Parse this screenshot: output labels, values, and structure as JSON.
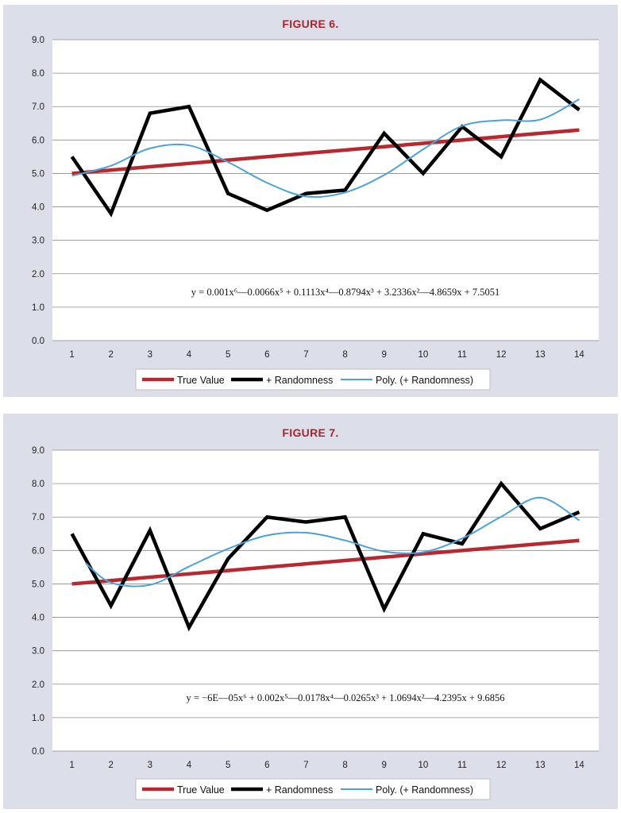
{
  "figures": [
    {
      "title": "FIGURE 6.",
      "equation": "y = 0.001x⁶—0.0066x⁵ + 0.1113x⁴—0.8794x³ + 3.2336x²—4.8659x + 7.5051",
      "legend": [
        "True Value",
        "+ Randomness",
        "Poly. (+ Randomness)"
      ]
    },
    {
      "title": "FIGURE 7.",
      "equation": "y = −6E—05x⁶ + 0.002x⁵—0.0178x⁴—0.0265x³ + 1.0694x²—4.2395x + 9.6856",
      "legend": [
        "True Value",
        "+ Randomness",
        "Poly. (+ Randomness)"
      ]
    }
  ],
  "chart_data": [
    {
      "type": "line",
      "title": "FIGURE 6.",
      "categories": [
        1,
        2,
        3,
        4,
        5,
        6,
        7,
        8,
        9,
        10,
        11,
        12,
        13,
        14
      ],
      "ylim": [
        0,
        9
      ],
      "yticks": [
        "0.0",
        "1.0",
        "2.0",
        "3.0",
        "4.0",
        "5.0",
        "6.0",
        "7.0",
        "8.0",
        "9.0"
      ],
      "grid": true,
      "legend_position": "bottom",
      "series": [
        {
          "name": "True Value",
          "color": "#b8292f",
          "values": [
            5.0,
            5.1,
            5.2,
            5.3,
            5.4,
            5.5,
            5.6,
            5.7,
            5.8,
            5.9,
            6.0,
            6.1,
            6.2,
            6.3
          ]
        },
        {
          "name": "+ Randomness",
          "color": "#000000",
          "values": [
            5.5,
            3.8,
            6.8,
            7.0,
            4.4,
            3.9,
            4.4,
            4.5,
            6.2,
            5.0,
            6.4,
            5.5,
            7.8,
            6.9
          ]
        },
        {
          "name": "Poly. (+ Randomness)",
          "color": "#4aa3d8",
          "values": [
            4.93,
            5.23,
            5.75,
            5.84,
            5.34,
            4.72,
            4.31,
            4.43,
            4.95,
            5.72,
            6.42,
            6.59,
            6.61,
            7.22
          ]
        }
      ]
    },
    {
      "type": "line",
      "title": "FIGURE 7.",
      "categories": [
        1,
        2,
        3,
        4,
        5,
        6,
        7,
        8,
        9,
        10,
        11,
        12,
        13,
        14
      ],
      "ylim": [
        0,
        9
      ],
      "yticks": [
        "0.0",
        "1.0",
        "2.0",
        "3.0",
        "4.0",
        "5.0",
        "6.0",
        "7.0",
        "8.0",
        "9.0"
      ],
      "grid": true,
      "legend_position": "bottom",
      "series": [
        {
          "name": "True Value",
          "color": "#b8292f",
          "values": [
            5.0,
            5.1,
            5.2,
            5.3,
            5.4,
            5.5,
            5.6,
            5.7,
            5.8,
            5.9,
            6.0,
            6.1,
            6.2,
            6.3
          ]
        },
        {
          "name": "+ Randomness",
          "color": "#000000",
          "values": [
            6.5,
            4.35,
            6.6,
            3.7,
            5.75,
            7.0,
            6.85,
            7.0,
            4.25,
            6.5,
            6.2,
            8.0,
            6.65,
            7.15
          ]
        },
        {
          "name": "Poly. (+ Randomness)",
          "color": "#4aa3d8",
          "values": [
            null,
            5.04,
            4.97,
            5.52,
            6.05,
            6.45,
            6.53,
            6.3,
            5.97,
            5.95,
            6.36,
            7.01,
            7.58,
            6.9
          ]
        },
        {
          "name": "Poly. start",
          "color": "#4aa3d8",
          "values": [
            5.62
          ],
          "x": [
            1.35
          ],
          "hidden_name": true
        }
      ]
    }
  ]
}
